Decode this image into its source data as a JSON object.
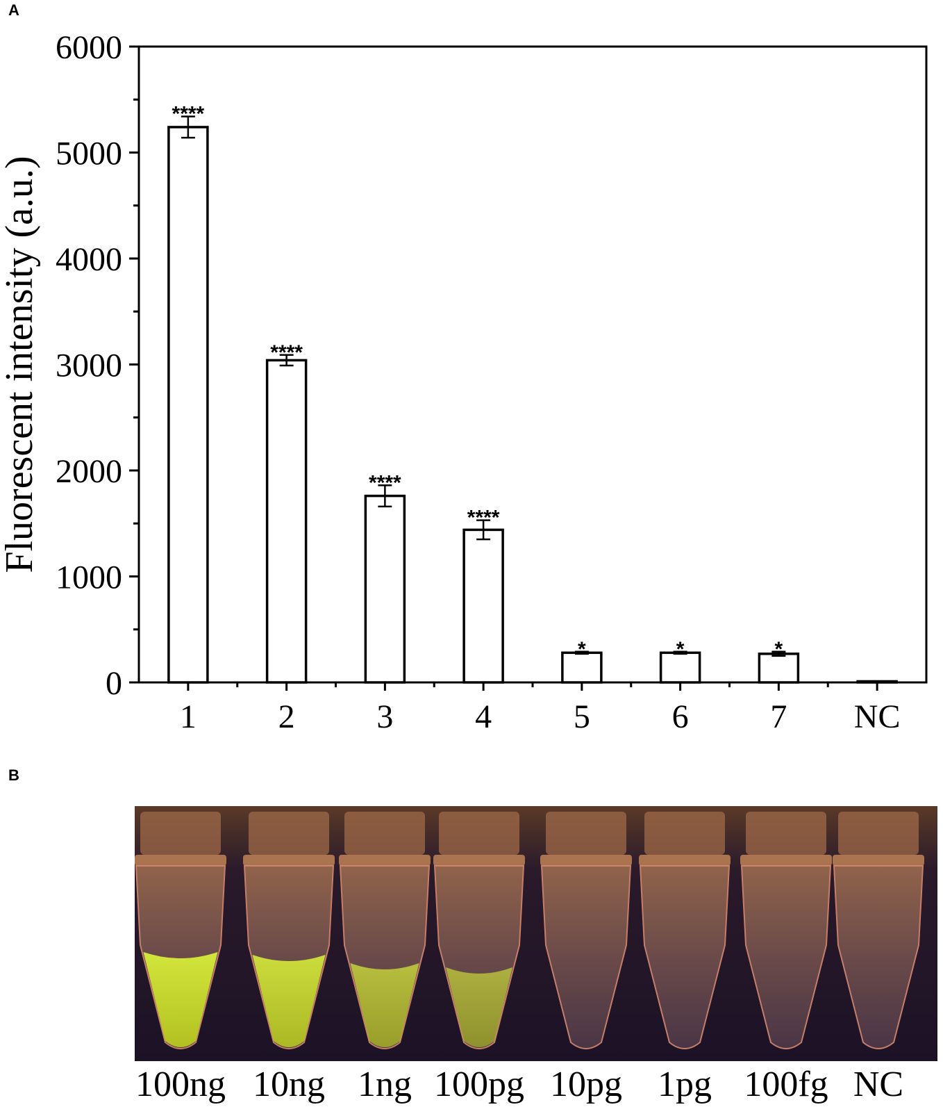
{
  "panel_labels": {
    "a": "A",
    "b": "B"
  },
  "chart_data": {
    "type": "bar",
    "categories": [
      "1",
      "2",
      "3",
      "4",
      "5",
      "6",
      "7",
      "NC"
    ],
    "values": [
      5240,
      3040,
      1760,
      1440,
      280,
      280,
      270,
      10
    ],
    "errors": [
      100,
      50,
      100,
      90,
      10,
      10,
      20,
      0
    ],
    "significance": [
      "****",
      "****",
      "****",
      "****",
      "*",
      "*",
      "*",
      ""
    ],
    "ylabel": "Fluorescent intensity (a.u.)",
    "xlabel": "",
    "title": "",
    "ylim": [
      0,
      6000
    ],
    "yticks": [
      0,
      1000,
      2000,
      3000,
      4000,
      5000,
      6000
    ],
    "ytick_labels": [
      "0",
      "1000",
      "2000",
      "3000",
      "4000",
      "5000",
      "6000"
    ],
    "bar_fill": "#ffffff",
    "bar_stroke": "#000000",
    "grid": false,
    "legend": "none"
  },
  "photo": {
    "tubes": [
      {
        "label": "100ng",
        "fluorescent": true,
        "glow": 1.0
      },
      {
        "label": "10ng",
        "fluorescent": true,
        "glow": 0.9
      },
      {
        "label": "1ng",
        "fluorescent": true,
        "glow": 0.6
      },
      {
        "label": "100pg",
        "fluorescent": true,
        "glow": 0.45
      },
      {
        "label": "10pg",
        "fluorescent": false,
        "glow": 0
      },
      {
        "label": "1pg",
        "fluorescent": false,
        "glow": 0
      },
      {
        "label": "100fg",
        "fluorescent": false,
        "glow": 0
      },
      {
        "label": "NC",
        "fluorescent": false,
        "glow": 0
      }
    ],
    "background_color": "#1c1226",
    "tube_tint": "#c98a5a",
    "fluorescent_color": "#d8ee3a"
  }
}
